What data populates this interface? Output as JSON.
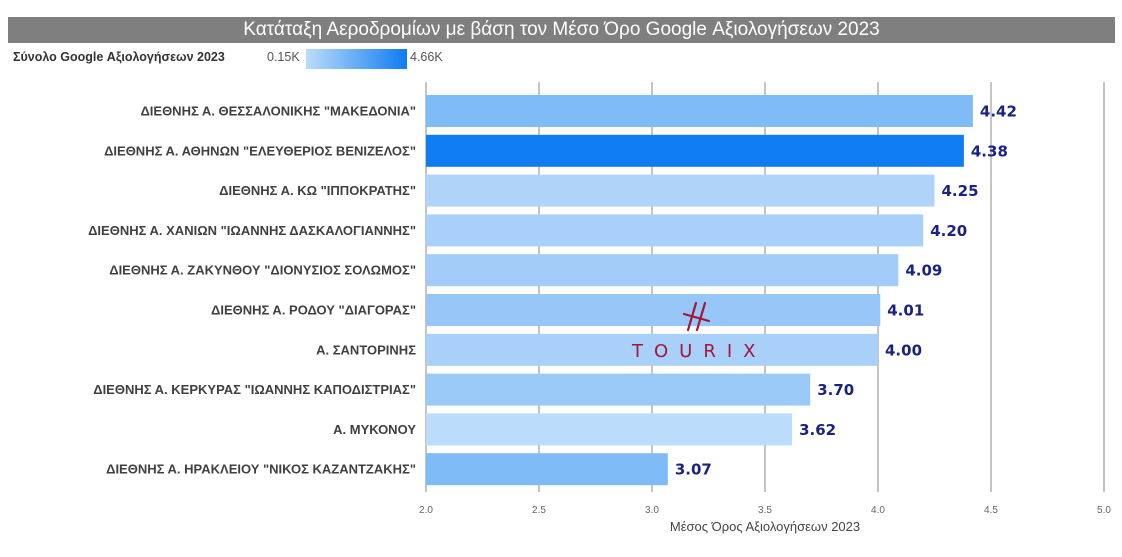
{
  "chart_data": {
    "type": "bar",
    "orientation": "horizontal",
    "title": "Κατάταξη Αεροδρομίων με βάση τον Μέσο Όρο Google Αξιολογήσεων 2023",
    "xlabel": "Μέσος Όρος Αξιολογήσεων 2023",
    "ylabel": "",
    "xlim": [
      2.0,
      5.0
    ],
    "x_ticks": [
      "2.0",
      "2.5",
      "3.0",
      "3.5",
      "4.0",
      "4.5",
      "5.0"
    ],
    "grid": true,
    "color_legend": {
      "label": "Σύνολο Google Αξιολογήσεων 2023",
      "min_label": "0.15K",
      "max_label": "4.66K",
      "min_color": "#bcdcfb",
      "max_color": "#0f7cf2"
    },
    "categories": [
      "ΔΙΕΘΝΗΣ Α. ΘΕΣΣΑΛΟΝΙΚΗΣ \"ΜΑΚΕΔΟΝΙΑ\"",
      "ΔΙΕΘΝΗΣ Α. ΑΘΗΝΩΝ \"ΕΛΕΥΘΕΡΙΟΣ ΒΕΝΙΖΕΛΟΣ\"",
      "ΔΙΕΘΝΗΣ Α. ΚΩ \"ΙΠΠΟΚΡΑΤΗΣ\"",
      "ΔΙΕΘΝΗΣ Α. ΧΑΝΙΩΝ \"ΙΩΑΝΝΗΣ ΔΑΣΚΑΛΟΓΙΑΝΝΗΣ\"",
      "ΔΙΕΘΝΗΣ Α. ΖΑΚΥΝΘΟΥ \"ΔΙΟΝΥΣΙΟΣ ΣΟΛΩΜΟΣ\"",
      "ΔΙΕΘΝΗΣ Α. ΡΟΔΟΥ \"ΔΙΑΓΟΡΑΣ\"",
      "Α. ΣΑΝΤΟΡΙΝΗΣ",
      "ΔΙΕΘΝΗΣ Α. ΚΕΡΚΥΡΑΣ \"ΙΩΑΝΝΗΣ ΚΑΠΟΔΙΣΤΡΙΑΣ\"",
      "Α. ΜΥΚΟΝΟΥ",
      "ΔΙΕΘΝΗΣ Α. ΗΡΑΚΛΕΙΟΥ \"ΝΙΚΟΣ ΚΑΖΑΝΤΖΑΚΗΣ\""
    ],
    "values": [
      4.42,
      4.38,
      4.25,
      4.2,
      4.09,
      4.01,
      4.0,
      3.7,
      3.62,
      3.07
    ],
    "value_labels": [
      "4.42",
      "4.38",
      "4.25",
      "4.20",
      "4.09",
      "4.01",
      "4.00",
      "3.70",
      "3.62",
      "3.07"
    ],
    "bar_colors": [
      "#7fbcf7",
      "#0f7cf2",
      "#b0d4f9",
      "#a9d0f9",
      "#a3ccf8",
      "#97c6f8",
      "#a9d0f9",
      "#9ccaf8",
      "#bcdcfb",
      "#7fbcf7"
    ]
  },
  "watermark": {
    "text": "TOURIX",
    "color": "#a3173b",
    "logo_icon": "tourix-mark-icon"
  }
}
